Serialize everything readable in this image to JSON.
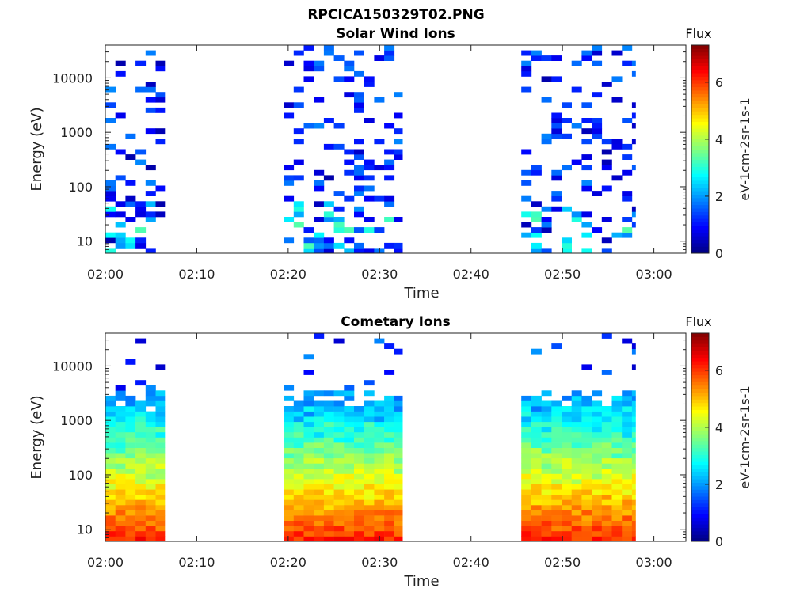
{
  "figure_title": "RPCICA150329T02.PNG",
  "chart_data": [
    {
      "type": "heatmap",
      "title": "Solar Wind Ions",
      "xlabel": "Time",
      "ylabel": "Energy (eV)",
      "x_ticks": [
        "02:00",
        "02:10",
        "02:20",
        "02:30",
        "02:40",
        "02:50",
        "03:00"
      ],
      "x_range_minutes": [
        0,
        63.5
      ],
      "y_scale": "log",
      "y_range_ev": [
        6,
        40000
      ],
      "y_ticks": [
        "10",
        "100",
        "1000",
        "10000"
      ],
      "colorbar": {
        "title": "Flux",
        "label": "eV-1cm-2sr-1s-1",
        "range": [
          0,
          7.3
        ],
        "ticks": [
          "0",
          "2",
          "4",
          "6"
        ],
        "colormap": "jet"
      },
      "data_intervals_minutes": [
        [
          0,
          6.5
        ],
        [
          19.5,
          32.5
        ],
        [
          45.5,
          58
        ]
      ],
      "typical_flux_range": [
        0.3,
        3.5
      ]
    },
    {
      "type": "heatmap",
      "title": "Cometary Ions",
      "xlabel": "Time",
      "ylabel": "Energy (eV)",
      "x_ticks": [
        "02:00",
        "02:10",
        "02:20",
        "02:30",
        "02:40",
        "02:50",
        "03:00"
      ],
      "x_range_minutes": [
        0,
        63.5
      ],
      "y_scale": "log",
      "y_range_ev": [
        6,
        40000
      ],
      "y_ticks": [
        "10",
        "100",
        "1000",
        "10000"
      ],
      "colorbar": {
        "title": "Flux",
        "label": "eV-1cm-2sr-1s-1",
        "range": [
          0,
          7.3
        ],
        "ticks": [
          "0",
          "2",
          "4",
          "6"
        ],
        "colormap": "jet"
      },
      "data_intervals_minutes": [
        [
          0,
          6.5
        ],
        [
          19.5,
          32.5
        ],
        [
          45.5,
          58
        ]
      ],
      "typical_flux_range": [
        2,
        6.2
      ]
    }
  ]
}
